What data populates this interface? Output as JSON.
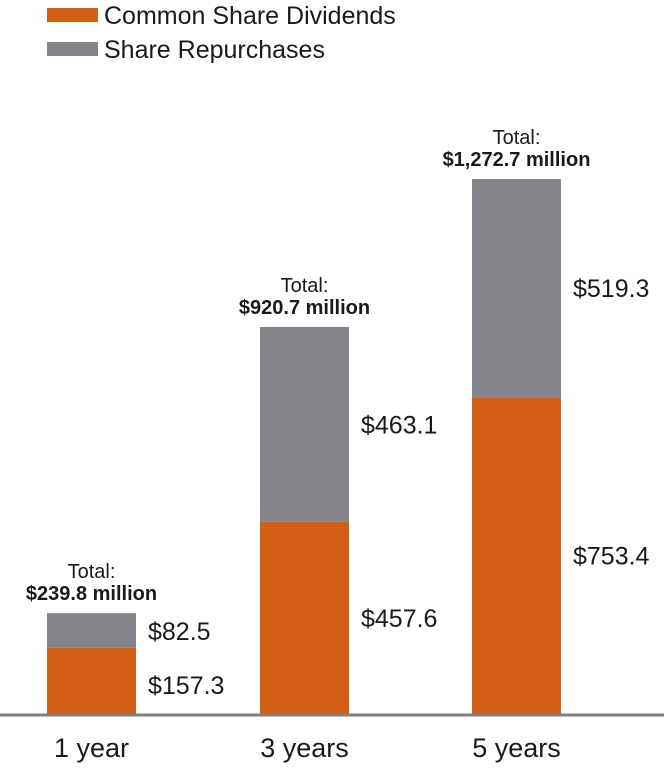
{
  "chart_data": {
    "type": "bar",
    "stacked": true,
    "categories": [
      "1 year",
      "3 years",
      "5 years"
    ],
    "series": [
      {
        "name": "Common Share Dividends",
        "values": [
          157.3,
          457.6,
          753.4
        ],
        "color": "#d35f17"
      },
      {
        "name": "Share Repurchases",
        "values": [
          82.5,
          463.1,
          519.3
        ],
        "color": "#858389"
      }
    ],
    "value_labels": {
      "Common Share Dividends": [
        "$157.3",
        "$457.6",
        "$753.4"
      ],
      "Share Repurchases": [
        "$82.5",
        "$463.1",
        "$519.3"
      ]
    },
    "totals": [
      {
        "caption": "Total:",
        "value_text": "$239.8 million"
      },
      {
        "caption": "Total:",
        "value_text": "$920.7 million"
      },
      {
        "caption": "Total:",
        "value_text": "$1,272.7 million"
      }
    ],
    "legend_position": "top-left",
    "grid": false,
    "ylim": [
      0,
      1272.7
    ],
    "axis_color": "#7f7f7f"
  }
}
